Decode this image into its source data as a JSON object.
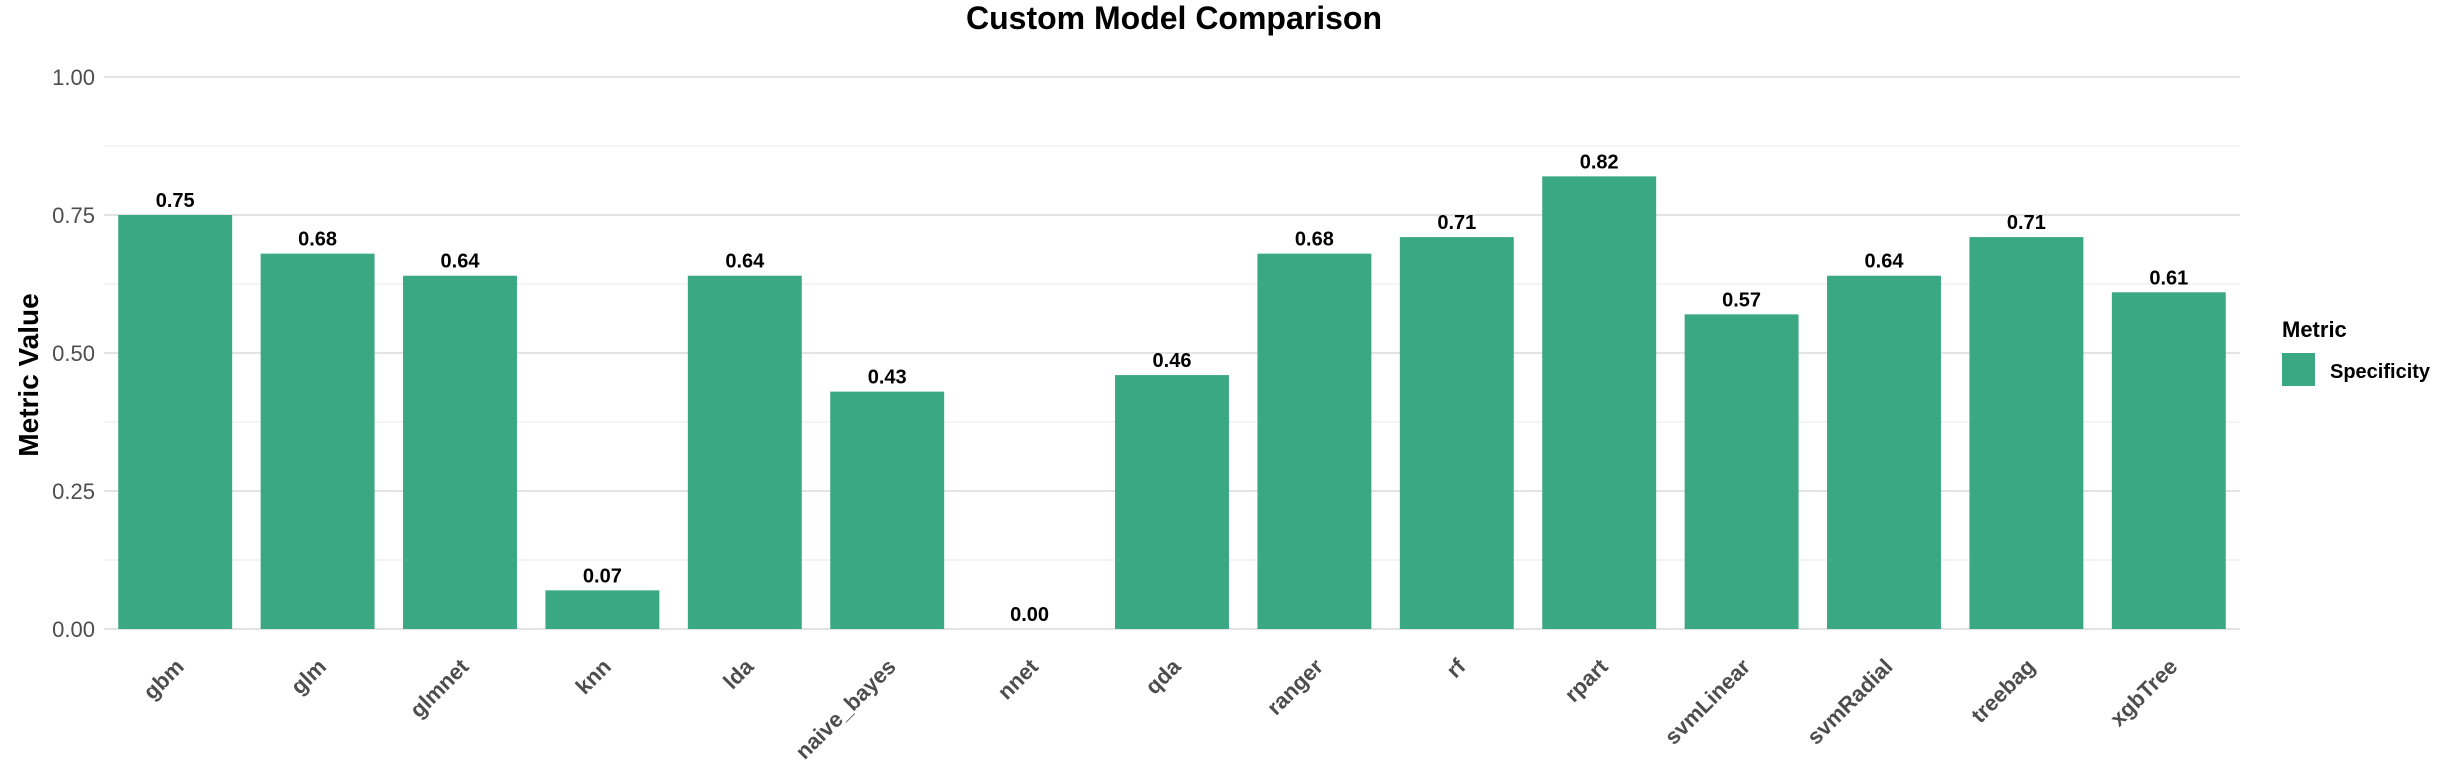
{
  "chart_data": {
    "type": "bar",
    "title": "Custom Model Comparison",
    "xlabel": "",
    "ylabel": "Metric Value",
    "ylim": [
      0,
      1
    ],
    "yticks": [
      "0.00",
      "0.25",
      "0.50",
      "0.75",
      "1.00"
    ],
    "ytick_values": [
      0,
      0.25,
      0.5,
      0.75,
      1.0
    ],
    "grid": true,
    "legend": {
      "title": "Metric",
      "position": "right"
    },
    "categories": [
      "gbm",
      "glm",
      "glmnet",
      "knn",
      "lda",
      "naive_bayes",
      "nnet",
      "qda",
      "ranger",
      "rf",
      "rpart",
      "svmLinear",
      "svmRadial",
      "treebag",
      "xgbTree"
    ],
    "series": [
      {
        "name": "Specificity",
        "color": "#3aa882",
        "values": [
          0.75,
          0.68,
          0.64,
          0.07,
          0.64,
          0.43,
          0.0,
          0.46,
          0.68,
          0.71,
          0.82,
          0.57,
          0.64,
          0.71,
          0.61
        ],
        "labels": [
          "0.75",
          "0.68",
          "0.64",
          "0.07",
          "0.64",
          "0.43",
          "0.00",
          "0.46",
          "0.68",
          "0.71",
          "0.82",
          "0.57",
          "0.64",
          "0.71",
          "0.61"
        ]
      }
    ]
  }
}
